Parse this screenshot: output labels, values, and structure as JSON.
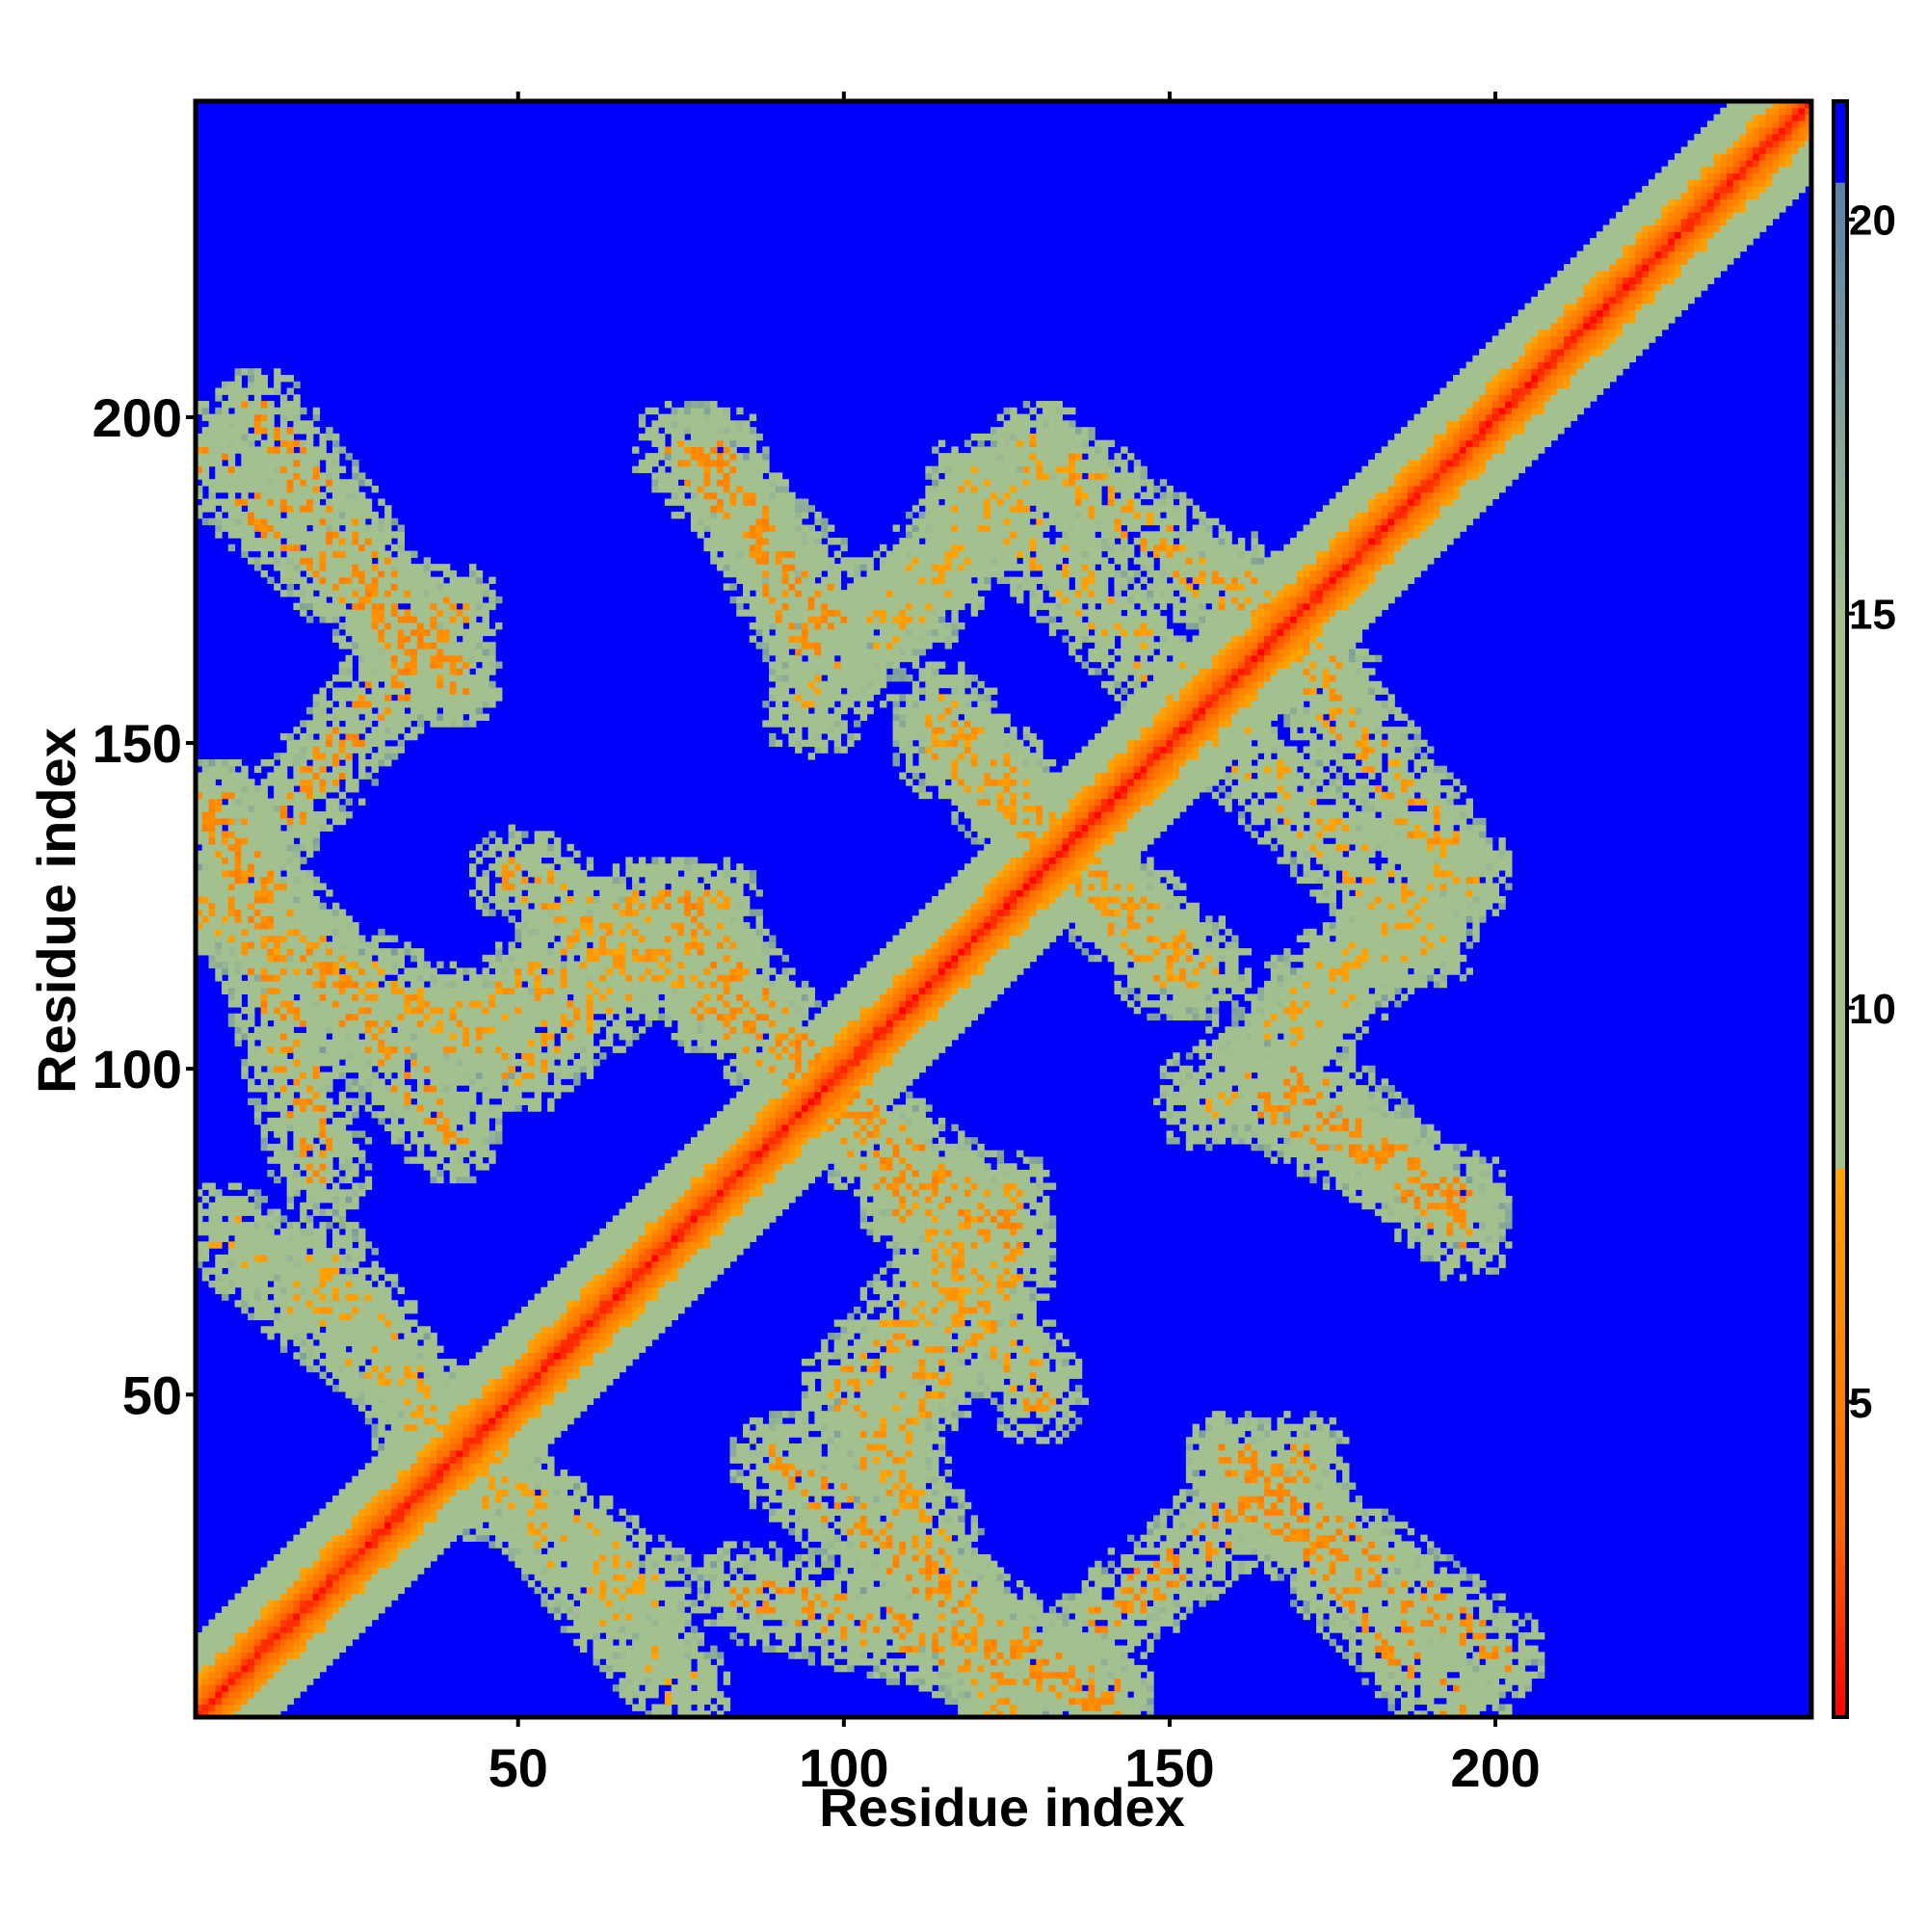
{
  "chart_data": {
    "type": "heatmap",
    "title": "",
    "xlabel": "Residue index",
    "ylabel": "Residue index",
    "n_residues": 248,
    "xlim": [
      1,
      248
    ],
    "ylim": [
      1,
      248
    ],
    "x_ticks": [
      50,
      100,
      150,
      200
    ],
    "y_ticks": [
      50,
      100,
      150,
      200
    ],
    "colorbar": {
      "range": [
        1,
        21.5
      ],
      "ticks": [
        5,
        10,
        15,
        20
      ],
      "colors": {
        "low": "#ff0000",
        "mid_low": "#ff6a00",
        "mid": "#ffa500",
        "mid_high": "#a3c08f",
        "high": "#5b7fa8",
        "max": "#0000ff"
      },
      "cutoff": 8
    },
    "background_color": "#0000ff",
    "diagonal_band": {
      "from": [
        1,
        1
      ],
      "to": [
        248,
        248
      ],
      "core_value": 1.5,
      "halfwidth": 12
    },
    "contact_bands": [
      {
        "from": [
          1,
          195
        ],
        "to": [
          40,
          160
        ],
        "value": 7
      },
      {
        "from": [
          1,
          140
        ],
        "to": [
          40,
          90
        ],
        "value": 7
      },
      {
        "from": [
          1,
          125
        ],
        "to": [
          45,
          105
        ],
        "value": 8
      },
      {
        "from": [
          40,
          105
        ],
        "to": [
          70,
          125
        ],
        "value": 8
      },
      {
        "from": [
          75,
          125
        ],
        "to": [
          110,
          80
        ],
        "value": 7
      },
      {
        "from": [
          110,
          80
        ],
        "to": [
          130,
          50
        ],
        "value": 8
      },
      {
        "from": [
          75,
          195
        ],
        "to": [
          100,
          170
        ],
        "value": 7
      },
      {
        "from": [
          110,
          170
        ],
        "to": [
          130,
          195
        ],
        "value": 9
      },
      {
        "from": [
          115,
          155
        ],
        "to": [
          150,
          115
        ],
        "value": 8
      },
      {
        "from": [
          160,
          175
        ],
        "to": [
          195,
          130
        ],
        "value": 8
      },
      {
        "from": [
          165,
          95
        ],
        "to": [
          195,
          80
        ],
        "value": 7
      },
      {
        "from": [
          160,
          40
        ],
        "to": [
          200,
          10
        ],
        "value": 7
      },
      {
        "from": [
          140,
          15
        ],
        "to": [
          170,
          40
        ],
        "value": 7
      },
      {
        "from": [
          5,
          75
        ],
        "to": [
          40,
          45
        ],
        "value": 9
      },
      {
        "from": [
          85,
          20
        ],
        "to": [
          140,
          5
        ],
        "value": 7
      },
      {
        "from": [
          100,
          50
        ],
        "to": [
          125,
          80
        ],
        "value": 8
      },
      {
        "from": [
          35,
          45
        ],
        "to": [
          70,
          20
        ],
        "value": 9
      },
      {
        "from": [
          155,
          95
        ],
        "to": [
          185,
          120
        ],
        "value": 9
      },
      {
        "from": [
          155,
          155
        ],
        "to": [
          190,
          120
        ],
        "value": 9
      }
    ]
  }
}
